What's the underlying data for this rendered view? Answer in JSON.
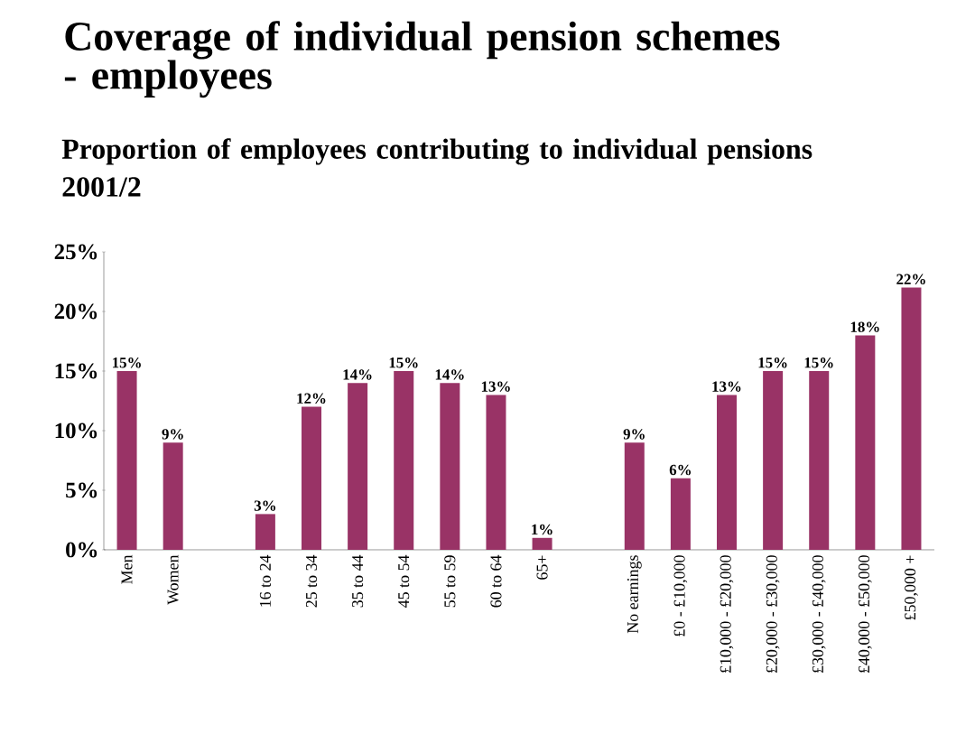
{
  "chart_data": {
    "type": "bar",
    "title": "Coverage of individual pension schemes - employees",
    "subtitle": "Proportion of employees contributing to individual pensions 2001/2",
    "categories": [
      "Men",
      "Women",
      null,
      "16 to 24",
      "25 to 34",
      "35 to 44",
      "45 to 54",
      "55 to 59",
      "60 to 64",
      "65+",
      null,
      "No earnings",
      "£0 - £10,000",
      "£10,000 - £20,000",
      "£20,000 - £30,000",
      "£30,000 - £40,000",
      "£40,000 - £50,000",
      "£50,000 +"
    ],
    "values": [
      15,
      9,
      null,
      3,
      12,
      14,
      15,
      14,
      13,
      1,
      null,
      9,
      6,
      13,
      15,
      15,
      18,
      22
    ],
    "value_labels": [
      "15%",
      "9%",
      null,
      "3%",
      "12%",
      "14%",
      "15%",
      "14%",
      "13%",
      "1%",
      null,
      "9%",
      "6%",
      "13%",
      "15%",
      "15%",
      "18%",
      "22%"
    ],
    "color": "#993366",
    "ylim": [
      0,
      25
    ],
    "yticks": [
      {
        "value": 0,
        "label": "0%"
      },
      {
        "value": 5,
        "label": "5%"
      },
      {
        "value": 10,
        "label": "10%"
      },
      {
        "value": 15,
        "label": "15%"
      },
      {
        "value": 20,
        "label": "20%"
      },
      {
        "value": 25,
        "label": "25%"
      }
    ]
  }
}
